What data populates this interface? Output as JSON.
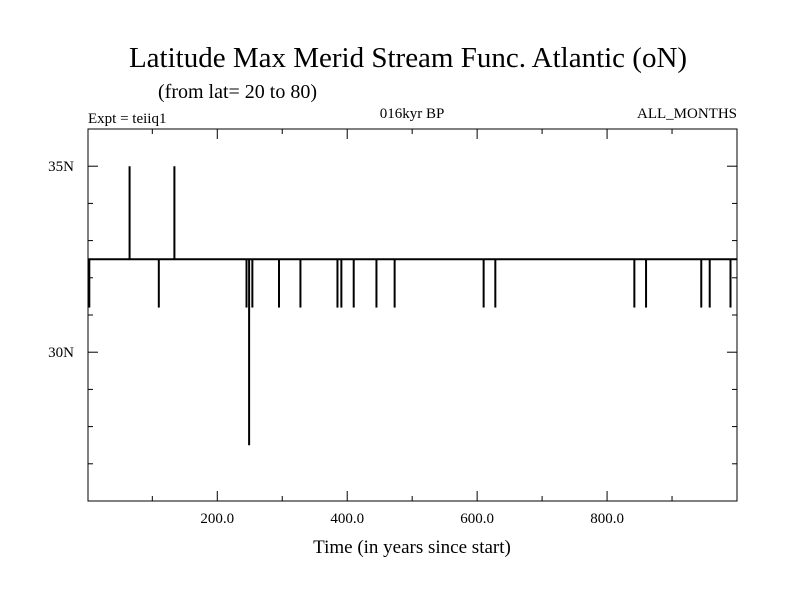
{
  "chart_data": {
    "type": "line",
    "title": "Latitude Max Merid Stream Func. Atlantic (oN)",
    "subtitle": "(from lat= 20 to 80)",
    "experiment_label": "Expt = teiiq1",
    "period_label": "016kyr BP",
    "months_label": "ALL_MONTHS",
    "xlabel": "Time (in years since start)",
    "ylabel": "",
    "xlim": [
      1,
      1000
    ],
    "ylim": [
      26,
      36
    ],
    "x_ticks": [
      {
        "value": 200,
        "label": "200.0"
      },
      {
        "value": 400,
        "label": "400.0"
      },
      {
        "value": 600,
        "label": "600.0"
      },
      {
        "value": 800,
        "label": "800.0"
      }
    ],
    "x_minor_ticks": [
      100,
      300,
      500,
      700,
      900
    ],
    "y_ticks": [
      {
        "value": 30,
        "label": "30N"
      },
      {
        "value": 35,
        "label": "35N"
      }
    ],
    "y_minor_ticks": [
      27,
      28,
      29,
      31,
      32,
      33,
      34
    ],
    "baseline": 32.5,
    "spikes": [
      {
        "x": 3,
        "y": 31.2
      },
      {
        "x": 65,
        "y": 35.0
      },
      {
        "x": 110,
        "y": 31.2
      },
      {
        "x": 134,
        "y": 35.0
      },
      {
        "x": 245,
        "y": 31.2
      },
      {
        "x": 249,
        "y": 27.5
      },
      {
        "x": 254,
        "y": 31.2
      },
      {
        "x": 295,
        "y": 31.2
      },
      {
        "x": 328,
        "y": 31.2
      },
      {
        "x": 385,
        "y": 31.2
      },
      {
        "x": 391,
        "y": 31.2
      },
      {
        "x": 410,
        "y": 31.2
      },
      {
        "x": 445,
        "y": 31.2
      },
      {
        "x": 473,
        "y": 31.2
      },
      {
        "x": 610,
        "y": 31.2
      },
      {
        "x": 628,
        "y": 31.2
      },
      {
        "x": 842,
        "y": 31.2
      },
      {
        "x": 860,
        "y": 31.2
      },
      {
        "x": 945,
        "y": 31.2
      },
      {
        "x": 958,
        "y": 31.2
      },
      {
        "x": 990,
        "y": 31.2
      }
    ]
  }
}
